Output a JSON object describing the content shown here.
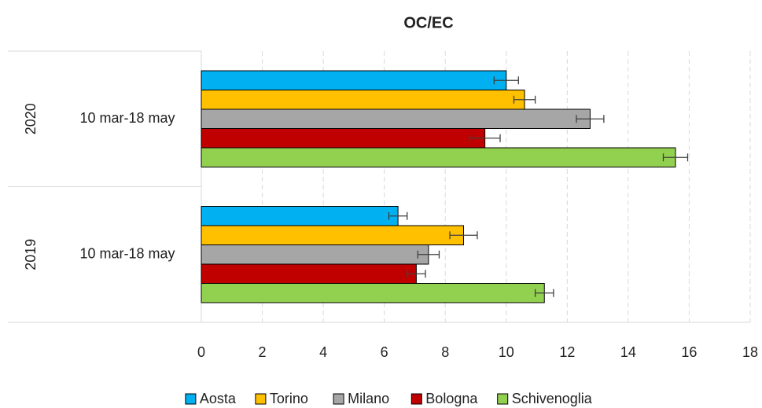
{
  "chart_data": {
    "type": "hbar",
    "title": "OC/EC",
    "groups": [
      "2020",
      "2019"
    ],
    "categories": [
      "10 mar-18 may",
      "10 mar-18 may"
    ],
    "series": [
      {
        "name": "Aosta",
        "color": "#00b0f0",
        "values": [
          10.0,
          6.45
        ],
        "errors": [
          0.4,
          0.3
        ]
      },
      {
        "name": "Torino",
        "color": "#ffc000",
        "values": [
          10.6,
          8.6
        ],
        "errors": [
          0.35,
          0.45
        ]
      },
      {
        "name": "Milano",
        "color": "#a6a6a6",
        "values": [
          12.75,
          7.45
        ],
        "errors": [
          0.45,
          0.35
        ]
      },
      {
        "name": "Bologna",
        "color": "#c00000",
        "values": [
          9.3,
          7.05
        ],
        "errors": [
          0.5,
          0.3
        ]
      },
      {
        "name": "Schivenoglia",
        "color": "#92d050",
        "values": [
          15.55,
          11.25
        ],
        "errors": [
          0.4,
          0.3
        ]
      }
    ],
    "xlim": [
      0,
      18
    ],
    "xticks": [
      0,
      2,
      4,
      6,
      8,
      10,
      12,
      14,
      16,
      18
    ],
    "grid": true,
    "legend": "bottom"
  }
}
